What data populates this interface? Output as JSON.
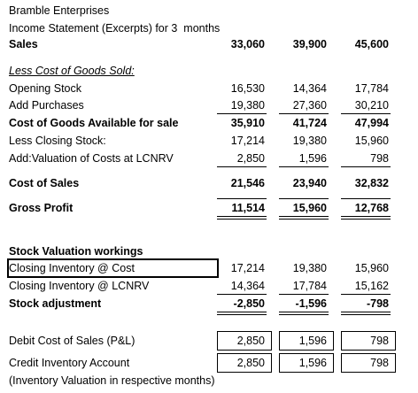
{
  "header": {
    "company": "Bramble Enterprises",
    "title": "Income Statement (Excerpts) for 3  months"
  },
  "statement": {
    "rows": [
      {
        "label": "Sales",
        "values": [
          "33,060",
          "39,900",
          "45,600"
        ]
      },
      {
        "label": "Less Cost of Goods Sold:"
      },
      {
        "label": "Opening Stock",
        "values": [
          "16,530",
          "14,364",
          "17,784"
        ]
      },
      {
        "label": "Add Purchases",
        "values": [
          "19,380",
          "27,360",
          "30,210"
        ]
      },
      {
        "label": "Cost of Goods Available for sale",
        "values": [
          "35,910",
          "41,724",
          "47,994"
        ]
      },
      {
        "label": "Less Closing Stock:",
        "values": [
          "17,214",
          "19,380",
          "15,960"
        ]
      },
      {
        "label": "Add:Valuation of Costs at LCNRV",
        "values": [
          "2,850",
          "1,596",
          "798"
        ]
      },
      {
        "label": "Cost of Sales",
        "values": [
          "21,546",
          "23,940",
          "32,832"
        ]
      },
      {
        "label": "Gross Profit",
        "values": [
          "11,514",
          "15,960",
          "12,768"
        ]
      }
    ]
  },
  "workings": {
    "title": "Stock Valuation workings",
    "rows": [
      {
        "label": "Closing Inventory @ Cost",
        "values": [
          "17,214",
          "19,380",
          "15,960"
        ]
      },
      {
        "label": "Closing Inventory @ LCNRV",
        "values": [
          "14,364",
          "17,784",
          "15,162"
        ]
      },
      {
        "label": "Stock adjustment",
        "values": [
          "-2,850",
          "-1,596",
          "-798"
        ]
      }
    ]
  },
  "entries": {
    "rows": [
      {
        "label": "Debit Cost of Sales (P&L)",
        "values": [
          "2,850",
          "1,596",
          "798"
        ]
      },
      {
        "label": "Credit Inventory Account",
        "values": [
          "2,850",
          "1,596",
          "798"
        ]
      }
    ],
    "note": "(Inventory Valuation in respective months)"
  }
}
